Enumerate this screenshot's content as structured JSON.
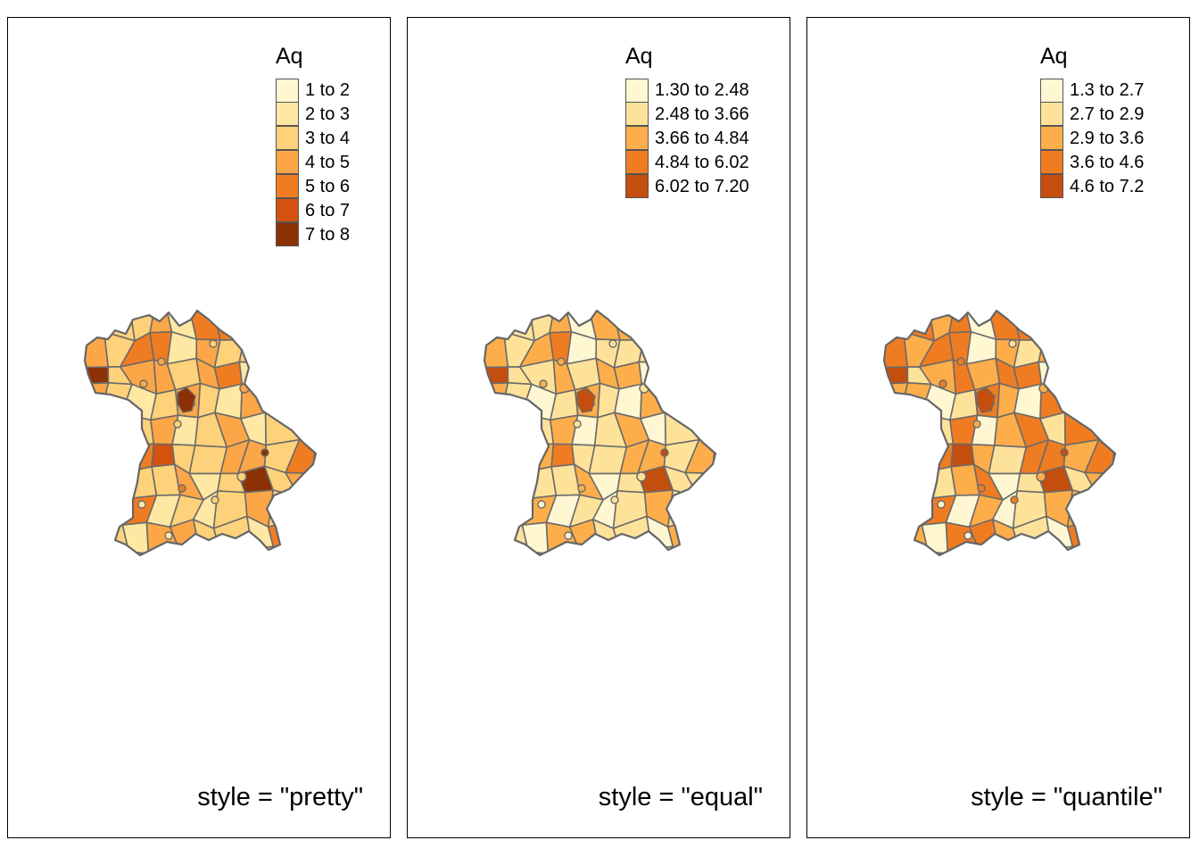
{
  "panels": [
    {
      "caption": "style = \"pretty\"",
      "legend": {
        "title": "Aq",
        "items": [
          {
            "label": "1 to 2",
            "color": "#fff7d2"
          },
          {
            "label": "2 to 3",
            "color": "#fee8a3"
          },
          {
            "label": "3 to 4",
            "color": "#fed27a"
          },
          {
            "label": "4 to 5",
            "color": "#fca647"
          },
          {
            "label": "5 to 6",
            "color": "#f07c22"
          },
          {
            "label": "6 to 7",
            "color": "#d45210"
          },
          {
            "label": "7 to 8",
            "color": "#8c3106"
          }
        ]
      },
      "region_classes": [
        1,
        2,
        2,
        3,
        1,
        4,
        4,
        5,
        2,
        2,
        3,
        3,
        2,
        4,
        4,
        1,
        3,
        2,
        2,
        3,
        1,
        2,
        6,
        2,
        3,
        3,
        2,
        3,
        4,
        1,
        2,
        1,
        2,
        3,
        2,
        1,
        2,
        3,
        2,
        1,
        3,
        3,
        2,
        2,
        1,
        4,
        2,
        3,
        1,
        2,
        3
      ]
    },
    {
      "caption": "style = \"equal\"",
      "legend": {
        "title": "Aq",
        "items": [
          {
            "label": "1.30 to 2.48",
            "color": "#fff7d2"
          },
          {
            "label": "2.48 to 3.66",
            "color": "#fee29a"
          },
          {
            "label": "3.66 to 4.84",
            "color": "#fdae4a"
          },
          {
            "label": "4.84 to 6.02",
            "color": "#f07c22"
          },
          {
            "label": "6.02 to 7.20",
            "color": "#c44e0e"
          }
        ]
      },
      "region_classes": [
        0,
        1,
        1,
        2,
        0,
        2,
        2,
        3,
        1,
        1,
        2,
        2,
        1,
        2,
        3,
        0,
        1,
        1,
        1,
        2,
        0,
        1,
        4,
        1,
        1,
        2,
        1,
        2,
        2,
        0,
        1,
        0,
        1,
        2,
        1,
        0,
        1,
        2,
        1,
        0,
        2,
        2,
        1,
        1,
        0,
        2,
        1,
        2,
        0,
        1,
        2
      ]
    },
    {
      "caption": "style = \"quantile\"",
      "legend": {
        "title": "Aq",
        "items": [
          {
            "label": "1.3 to 2.7",
            "color": "#fff7d2"
          },
          {
            "label": "2.7 to 2.9",
            "color": "#fee29a"
          },
          {
            "label": "2.9 to 3.6",
            "color": "#fdae4a"
          },
          {
            "label": "3.6 to 4.6",
            "color": "#f07c22"
          },
          {
            "label": "4.6 to 7.2",
            "color": "#c44e0e"
          }
        ]
      },
      "region_classes": [
        1,
        3,
        2,
        3,
        0,
        3,
        3,
        4,
        2,
        1,
        3,
        3,
        2,
        3,
        3,
        0,
        2,
        1,
        2,
        3,
        0,
        1,
        4,
        1,
        2,
        3,
        2,
        3,
        3,
        0,
        2,
        0,
        1,
        2,
        2,
        0,
        1,
        3,
        2,
        0,
        3,
        3,
        2,
        1,
        0,
        3,
        1,
        3,
        0,
        2,
        3
      ]
    }
  ]
}
